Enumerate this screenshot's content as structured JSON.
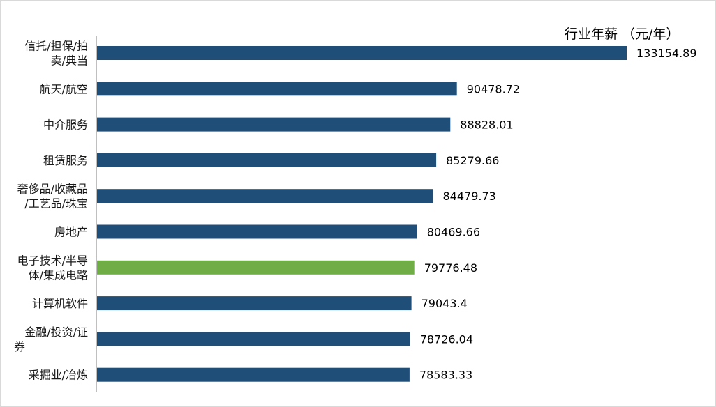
{
  "chart_data": {
    "type": "bar",
    "orientation": "horizontal",
    "title": "行业年薪 （元/年）",
    "categories": [
      [
        "信托/担保/拍",
        "卖/典当"
      ],
      [
        "航天/航空"
      ],
      [
        "中介服务"
      ],
      [
        "租赁服务"
      ],
      [
        "奢侈品/收藏品",
        "/工艺品/珠宝"
      ],
      [
        "房地产"
      ],
      [
        "电子技术/半导",
        "体/集成电路"
      ],
      [
        "计算机软件"
      ],
      [
        "金融/投资/证",
        "券"
      ],
      [
        "采掘业/冶炼"
      ]
    ],
    "values": [
      133154.89,
      90478.72,
      88828.01,
      85279.66,
      84479.73,
      80469.66,
      79776.48,
      79043.4,
      78726.04,
      78583.33
    ],
    "value_labels": [
      "133154.89",
      "90478.72",
      "88828.01",
      "85279.66",
      "84479.73",
      "80469.66",
      "79776.48",
      "79043.4",
      "78726.04",
      "78583.33"
    ],
    "xlim": [
      0,
      133154.89
    ],
    "grid": false,
    "colors": {
      "default": "#1f4e79",
      "highlight": "#70ad47",
      "axis": "#bfbfbf"
    },
    "highlight_index": 6
  }
}
